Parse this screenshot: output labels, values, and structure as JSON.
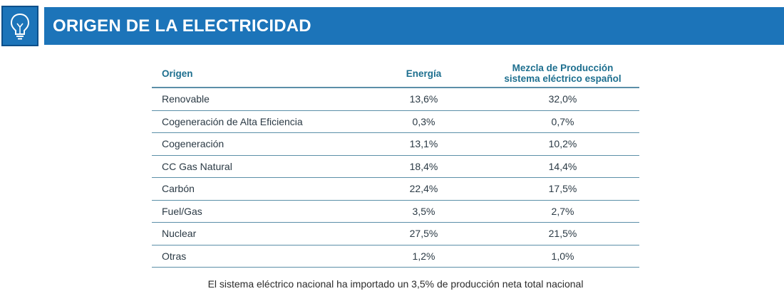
{
  "header": {
    "title": "ORIGEN DE LA ELECTRICIDAD",
    "icon": "lightbulb-icon"
  },
  "table": {
    "headers": {
      "origen": "Origen",
      "energia": "Energía",
      "mezcla_line1": "Mezcla de Producción",
      "mezcla_line2": "sistema eléctrico español"
    },
    "rows": [
      {
        "origen": "Renovable",
        "energia": "13,6%",
        "mezcla": "32,0%"
      },
      {
        "origen": "Cogeneración de Alta Eficiencia",
        "energia": "0,3%",
        "mezcla": "0,7%"
      },
      {
        "origen": "Cogeneración",
        "energia": "13,1%",
        "mezcla": "10,2%"
      },
      {
        "origen": "CC Gas Natural",
        "energia": "18,4%",
        "mezcla": "14,4%"
      },
      {
        "origen": "Carbón",
        "energia": "22,4%",
        "mezcla": "17,5%"
      },
      {
        "origen": "Fuel/Gas",
        "energia": "3,5%",
        "mezcla": "2,7%"
      },
      {
        "origen": "Nuclear",
        "energia": "27,5%",
        "mezcla": "21,5%"
      },
      {
        "origen": "Otras",
        "energia": "1,2%",
        "mezcla": "1,0%"
      }
    ]
  },
  "footnote": "El sistema eléctrico nacional ha importado un 3,5% de producción neta total nacional",
  "colors": {
    "header_bg": "#1c74b9",
    "header_text": "#ffffff",
    "table_header_text": "#1d6f8f",
    "row_border": "#5b8fa8"
  }
}
